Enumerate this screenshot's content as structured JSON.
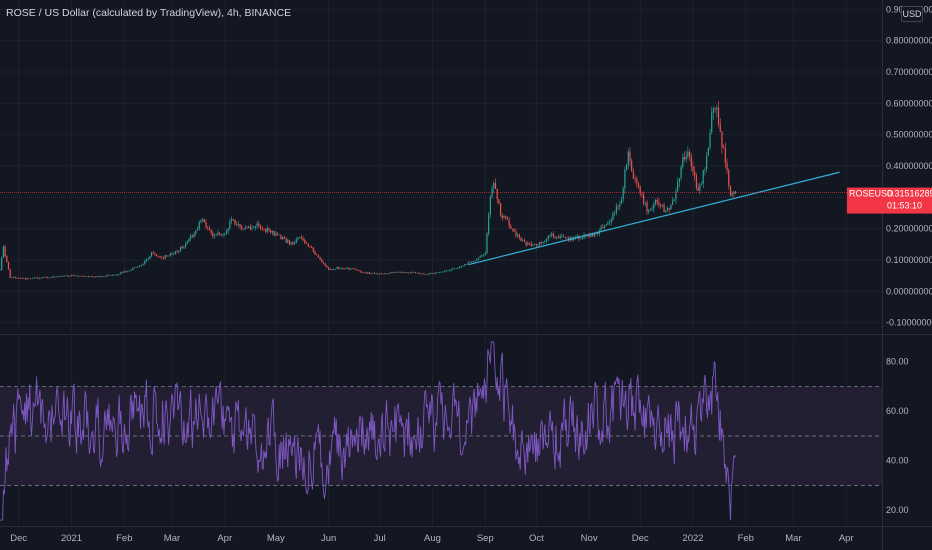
{
  "header": {
    "title": "ROSE / US Dollar (calculated by TradingView), 4h, BINANCE",
    "currency": "USD"
  },
  "price_tag": {
    "symbol": "ROSEUSD",
    "price": "0.31516289",
    "countdown": "01:53:10"
  },
  "colors": {
    "background": "#131722",
    "grid": "#1e222d",
    "up": "#26a69a",
    "down": "#ef5350",
    "trendline": "#2fb3d8",
    "rsi": "#7e57c2",
    "rsi_band": "#221f33",
    "last_price": "#f23645"
  },
  "chart_data": [
    {
      "type": "candlestick",
      "title": "ROSE / US Dollar (calculated by TradingView), 4h, BINANCE",
      "xlabel": "",
      "ylabel": "",
      "x_ticks": [
        "Dec",
        "2021",
        "Feb",
        "Mar",
        "Apr",
        "May",
        "Jun",
        "Jul",
        "Aug",
        "Sep",
        "Oct",
        "Nov",
        "Dec",
        "2022",
        "Feb",
        "Mar",
        "Apr"
      ],
      "y_ticks": [
        "0.90000000",
        "0.80000000",
        "0.70000000",
        "0.60000000",
        "0.50000000",
        "0.40000000",
        "0.30000000",
        "0.20000000",
        "0.10000000",
        "0.00000000",
        "-0.10000000"
      ],
      "ylim": [
        -0.13,
        0.93
      ],
      "xlim": [
        "2020-11-20",
        "2022-04-22"
      ],
      "grid": true,
      "series": [
        {
          "points": [
            [
              "2020-11-20",
              0.07
            ],
            [
              "2020-11-22",
              0.14
            ],
            [
              "2020-11-26",
              0.045
            ],
            [
              "2020-12-05",
              0.04
            ],
            [
              "2020-12-20",
              0.045
            ],
            [
              "2021-01-01",
              0.05
            ],
            [
              "2021-01-15",
              0.045
            ],
            [
              "2021-01-28",
              0.055
            ],
            [
              "2021-02-05",
              0.07
            ],
            [
              "2021-02-12",
              0.09
            ],
            [
              "2021-02-18",
              0.125
            ],
            [
              "2021-02-22",
              0.105
            ],
            [
              "2021-03-01",
              0.12
            ],
            [
              "2021-03-08",
              0.145
            ],
            [
              "2021-03-15",
              0.195
            ],
            [
              "2021-03-18",
              0.23
            ],
            [
              "2021-03-25",
              0.18
            ],
            [
              "2021-04-01",
              0.19
            ],
            [
              "2021-04-05",
              0.225
            ],
            [
              "2021-04-12",
              0.2
            ],
            [
              "2021-04-20",
              0.21
            ],
            [
              "2021-04-28",
              0.19
            ],
            [
              "2021-05-05",
              0.17
            ],
            [
              "2021-05-10",
              0.15
            ],
            [
              "2021-05-15",
              0.17
            ],
            [
              "2021-05-20",
              0.15
            ],
            [
              "2021-05-25",
              0.115
            ],
            [
              "2021-06-01",
              0.07
            ],
            [
              "2021-06-08",
              0.075
            ],
            [
              "2021-06-15",
              0.07
            ],
            [
              "2021-06-22",
              0.06
            ],
            [
              "2021-07-01",
              0.055
            ],
            [
              "2021-07-10",
              0.06
            ],
            [
              "2021-07-20",
              0.06
            ],
            [
              "2021-07-28",
              0.055
            ],
            [
              "2021-08-05",
              0.06
            ],
            [
              "2021-08-15",
              0.075
            ],
            [
              "2021-08-25",
              0.095
            ],
            [
              "2021-09-01",
              0.12
            ],
            [
              "2021-09-04",
              0.3
            ],
            [
              "2021-09-06",
              0.35
            ],
            [
              "2021-09-10",
              0.25
            ],
            [
              "2021-09-18",
              0.19
            ],
            [
              "2021-09-25",
              0.15
            ],
            [
              "2021-10-01",
              0.145
            ],
            [
              "2021-10-10",
              0.18
            ],
            [
              "2021-10-20",
              0.165
            ],
            [
              "2021-10-28",
              0.175
            ],
            [
              "2021-11-05",
              0.185
            ],
            [
              "2021-11-12",
              0.215
            ],
            [
              "2021-11-16",
              0.25
            ],
            [
              "2021-11-20",
              0.3
            ],
            [
              "2021-11-24",
              0.46
            ],
            [
              "2021-11-27",
              0.36
            ],
            [
              "2021-12-02",
              0.3
            ],
            [
              "2021-12-06",
              0.25
            ],
            [
              "2021-12-10",
              0.3
            ],
            [
              "2021-12-15",
              0.26
            ],
            [
              "2021-12-20",
              0.28
            ],
            [
              "2021-12-26",
              0.42
            ],
            [
              "2021-12-30",
              0.44
            ],
            [
              "2022-01-04",
              0.31
            ],
            [
              "2022-01-08",
              0.4
            ],
            [
              "2022-01-12",
              0.55
            ],
            [
              "2022-01-14",
              0.6
            ],
            [
              "2022-01-17",
              0.5
            ],
            [
              "2022-01-20",
              0.42
            ],
            [
              "2022-01-23",
              0.3
            ],
            [
              "2022-01-26",
              0.315
            ]
          ]
        }
      ],
      "trendline": {
        "points": [
          [
            "2021-08-22",
            0.085
          ],
          [
            "2022-03-28",
            0.38
          ]
        ]
      },
      "last_price": 0.31516289
    },
    {
      "type": "line",
      "title": "",
      "xlabel": "",
      "ylabel": "",
      "y_ticks": [
        "80.00",
        "60.00",
        "40.00",
        "20.00"
      ],
      "ylim": [
        14,
        90
      ],
      "band": [
        30,
        70
      ],
      "midline": 50,
      "grid": true,
      "series": [
        {
          "points": [
            [
              "2020-11-20",
              15
            ],
            [
              "2020-11-24",
              38
            ],
            [
              "2020-12-01",
              55
            ],
            [
              "2020-12-10",
              62
            ],
            [
              "2021-01-01",
              55
            ],
            [
              "2021-01-15",
              52
            ],
            [
              "2021-02-01",
              58
            ],
            [
              "2021-02-15",
              60
            ],
            [
              "2021-03-15",
              57
            ],
            [
              "2021-04-01",
              52
            ],
            [
              "2021-04-20",
              50
            ],
            [
              "2021-05-10",
              45
            ],
            [
              "2021-05-25",
              41
            ],
            [
              "2021-06-10",
              48
            ],
            [
              "2021-07-01",
              50
            ],
            [
              "2021-07-20",
              52
            ],
            [
              "2021-08-10",
              55
            ],
            [
              "2021-08-25",
              53
            ],
            [
              "2021-09-05",
              84
            ],
            [
              "2021-09-20",
              45
            ],
            [
              "2021-10-10",
              50
            ],
            [
              "2021-10-25",
              55
            ],
            [
              "2021-11-10",
              58
            ],
            [
              "2021-11-25",
              62
            ],
            [
              "2021-12-10",
              48
            ],
            [
              "2021-12-25",
              52
            ],
            [
              "2022-01-05",
              55
            ],
            [
              "2022-01-14",
              72
            ],
            [
              "2022-01-20",
              42
            ],
            [
              "2022-01-23",
              22
            ],
            [
              "2022-01-26",
              38
            ]
          ]
        }
      ]
    }
  ]
}
